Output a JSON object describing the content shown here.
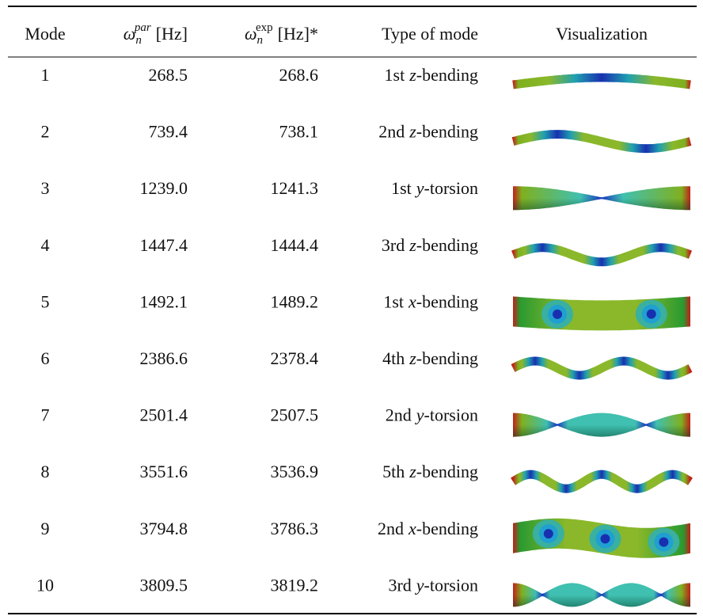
{
  "table": {
    "header": [
      "Mode",
      {
        "symbol": "ω",
        "sub": "n",
        "sup": "par",
        "unit": "[Hz]"
      },
      {
        "symbol": "ω",
        "sub": "n",
        "sup": "exp",
        "unit": "[Hz]*"
      },
      "Type of mode",
      "Visualization"
    ],
    "rows": [
      [
        "1",
        "268.5",
        "268.6",
        {
          "ordinal": "1st",
          "axis": "z",
          "kind": "-bending"
        }
      ],
      [
        "2",
        "739.4",
        "738.1",
        {
          "ordinal": "2nd",
          "axis": "z",
          "kind": "-bending"
        }
      ],
      [
        "3",
        "1239.0",
        "1241.3",
        {
          "ordinal": "1st",
          "axis": "y",
          "kind": "-torsion"
        }
      ],
      [
        "4",
        "1447.4",
        "1444.4",
        {
          "ordinal": "3rd",
          "axis": "z",
          "kind": "-bending"
        }
      ],
      [
        "5",
        "1492.1",
        "1489.2",
        {
          "ordinal": "1st",
          "axis": "x",
          "kind": "-bending"
        }
      ],
      [
        "6",
        "2386.6",
        "2378.4",
        {
          "ordinal": "4th",
          "axis": "z",
          "kind": "-bending"
        }
      ],
      [
        "7",
        "2501.4",
        "2507.5",
        {
          "ordinal": "2nd",
          "axis": "y",
          "kind": "-torsion"
        }
      ],
      [
        "8",
        "3551.6",
        "3536.9",
        {
          "ordinal": "5th",
          "axis": "z",
          "kind": "-bending"
        }
      ],
      [
        "9",
        "3794.8",
        "3786.3",
        {
          "ordinal": "2nd",
          "axis": "x",
          "kind": "-bending"
        }
      ],
      [
        "10",
        "3809.5",
        "3819.2",
        {
          "ordinal": "3rd",
          "axis": "y",
          "kind": "-torsion"
        }
      ]
    ]
  }
}
